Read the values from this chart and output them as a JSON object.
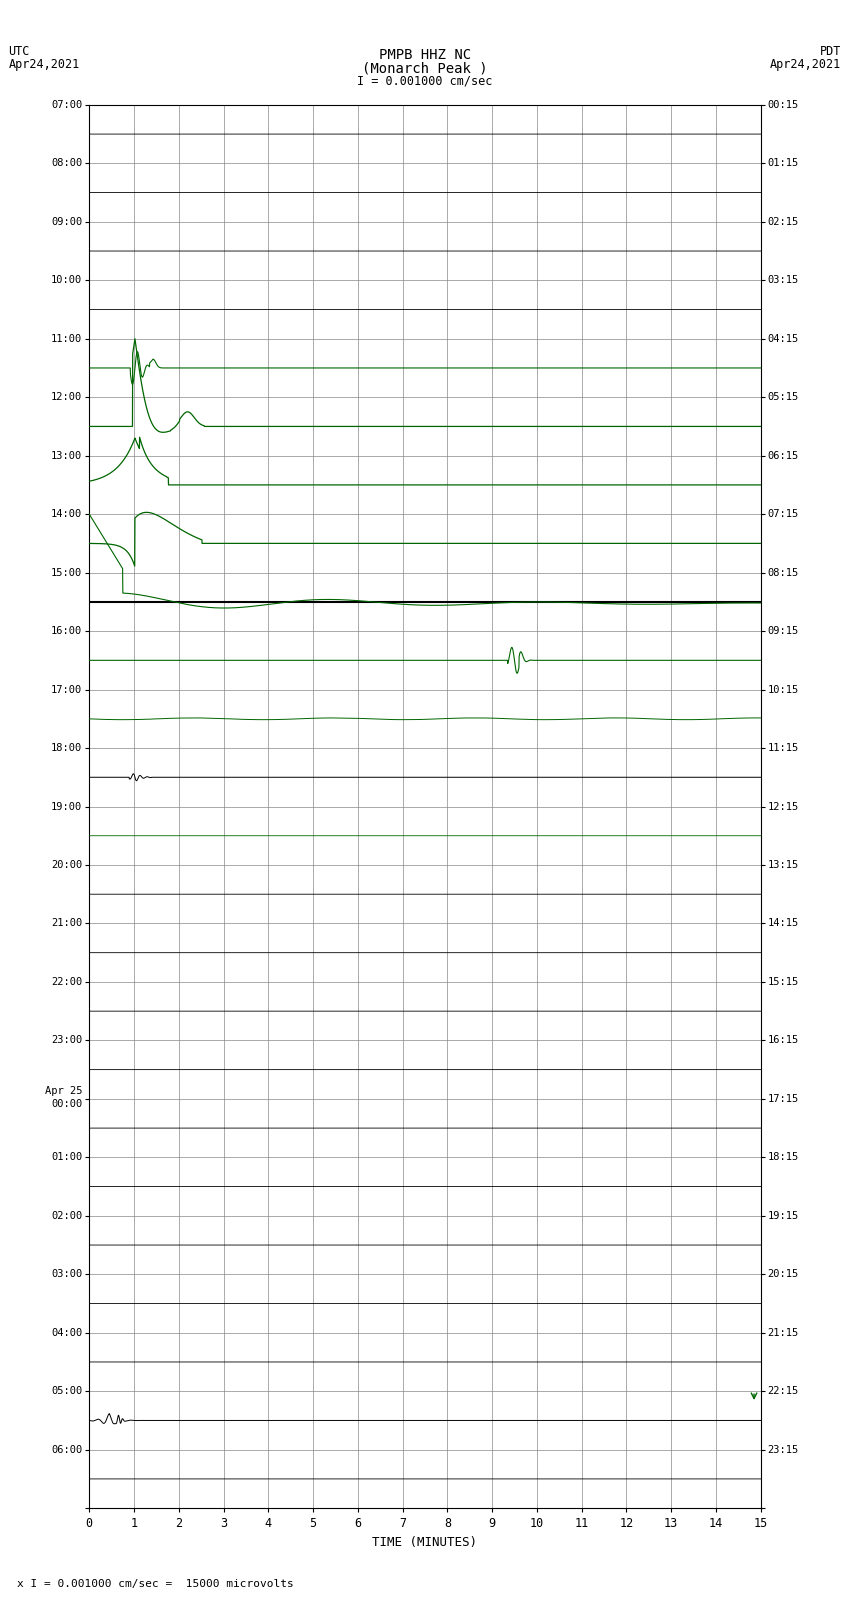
{
  "title_line1": "PMPB HHZ NC",
  "title_line2": "(Monarch Peak )",
  "title_scale": "I = 0.001000 cm/sec",
  "left_header_line1": "UTC",
  "left_header_line2": "Apr24,2021",
  "right_header_line1": "PDT",
  "right_header_line2": "Apr24,2021",
  "footer_note": "x I = 0.001000 cm/sec =  15000 microvolts",
  "xlabel": "TIME (MINUTES)",
  "bg_color": "#ffffff",
  "grid_color": "#888888",
  "trace_color_green": "#006600",
  "trace_color_black": "#000000",
  "n_rows": 24,
  "x_max": 15,
  "left_labels": [
    "07:00",
    "08:00",
    "09:00",
    "10:00",
    "11:00",
    "12:00",
    "13:00",
    "14:00",
    "15:00",
    "16:00",
    "17:00",
    "18:00",
    "19:00",
    "20:00",
    "21:00",
    "22:00",
    "23:00",
    "Apr 25\n00:00",
    "01:00",
    "02:00",
    "03:00",
    "04:00",
    "05:00",
    "06:00"
  ],
  "right_labels": [
    "00:15",
    "01:15",
    "02:15",
    "03:15",
    "04:15",
    "05:15",
    "06:15",
    "07:15",
    "08:15",
    "09:15",
    "10:15",
    "11:15",
    "12:15",
    "13:15",
    "14:15",
    "15:15",
    "16:15",
    "17:15",
    "18:15",
    "19:15",
    "20:15",
    "21:15",
    "22:15",
    "23:15"
  ]
}
